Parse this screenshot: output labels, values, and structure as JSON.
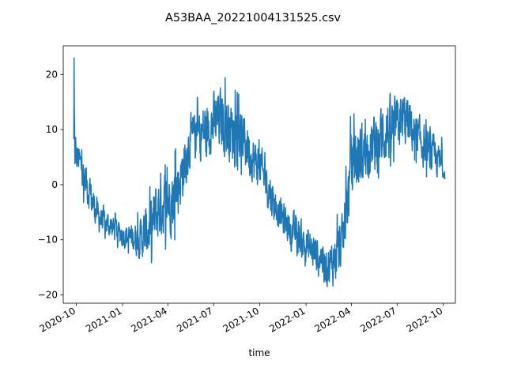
{
  "chart_data": {
    "type": "line",
    "title": "A53BAA_20221004131525.csv",
    "xlabel": "time",
    "ylabel": "",
    "xlim": [
      "2020-09-05",
      "2022-10-25"
    ],
    "ylim": [
      -21.5,
      25.2
    ],
    "grid": false,
    "legend": "none",
    "x_ticks": [
      "2020-10",
      "2021-01",
      "2021-04",
      "2021-07",
      "2021-10",
      "2022-01",
      "2022-04",
      "2022-07",
      "2022-10"
    ],
    "y_ticks": [
      -20,
      -10,
      0,
      10,
      20
    ],
    "series": [
      {
        "name": "",
        "color": "#1f77b4",
        "x": [
          "2020-09-26",
          "2020-10-01",
          "2020-10-08",
          "2020-10-15",
          "2020-10-22",
          "2020-11-01",
          "2020-11-15",
          "2020-12-01",
          "2020-12-15",
          "2021-01-01",
          "2021-01-15",
          "2021-02-01",
          "2021-02-15",
          "2021-03-01",
          "2021-03-15",
          "2021-04-01",
          "2021-04-15",
          "2021-05-01",
          "2021-05-15",
          "2021-06-01",
          "2021-06-15",
          "2021-07-01",
          "2021-07-15",
          "2021-08-01",
          "2021-08-15",
          "2021-09-01",
          "2021-09-15",
          "2021-10-01",
          "2021-10-15",
          "2021-11-01",
          "2021-11-15",
          "2021-12-01",
          "2021-12-15",
          "2022-01-01",
          "2022-01-15",
          "2022-02-01",
          "2022-02-15",
          "2022-03-01",
          "2022-03-15",
          "2022-04-01",
          "2022-04-15",
          "2022-05-01",
          "2022-05-15",
          "2022-06-01",
          "2022-06-15",
          "2022-07-01",
          "2022-07-15",
          "2022-08-01",
          "2022-08-15",
          "2022-09-01",
          "2022-09-15",
          "2022-10-01",
          "2022-10-04"
        ],
        "y": [
          6.0,
          5.0,
          4.0,
          2.0,
          0.0,
          -3.0,
          -6.0,
          -7.0,
          -8.0,
          -9.0,
          -9.5,
          -10.0,
          -9.0,
          -7.0,
          -4.0,
          -3.0,
          -2.0,
          3.0,
          8.0,
          9.0,
          10.0,
          11.0,
          12.0,
          10.0,
          9.0,
          8.0,
          5.0,
          3.0,
          0.0,
          -4.0,
          -6.0,
          -8.0,
          -9.0,
          -11.0,
          -12.0,
          -13.0,
          -15.0,
          -13.0,
          -10.0,
          3.0,
          5.0,
          6.0,
          7.0,
          9.0,
          10.0,
          11.0,
          12.0,
          10.0,
          8.0,
          6.0,
          5.0,
          3.0,
          2.0
        ],
        "y_min": [
          0.5,
          1.0,
          0.0,
          -3.0,
          -6.0,
          -8.0,
          -9.0,
          -10.0,
          -11.0,
          -12.0,
          -12.5,
          -13.0,
          -15.5,
          -14.0,
          -11.0,
          -12.0,
          -10.0,
          -2.0,
          3.0,
          4.0,
          5.0,
          6.0,
          6.0,
          4.0,
          3.0,
          1.0,
          -1.0,
          -3.0,
          -6.0,
          -8.0,
          -10.0,
          -12.0,
          -13.0,
          -15.0,
          -16.0,
          -17.0,
          -19.0,
          -18.0,
          -15.0,
          -3.0,
          -5.0,
          -1.0,
          0.0,
          2.0,
          3.0,
          5.0,
          6.0,
          5.0,
          3.0,
          1.0,
          0.0,
          1.5,
          1.0
        ],
        "y_max": [
          23.0,
          9.5,
          8.0,
          5.0,
          3.0,
          0.0,
          -2.0,
          -4.0,
          -5.0,
          -6.0,
          -6.0,
          -5.0,
          -3.0,
          1.0,
          5.0,
          3.0,
          6.0,
          12.0,
          15.0,
          16.0,
          19.0,
          21.0,
          21.0,
          18.0,
          17.0,
          15.0,
          10.0,
          8.0,
          5.0,
          0.0,
          -2.0,
          -4.0,
          -4.0,
          -6.0,
          -7.0,
          -8.0,
          -9.0,
          -6.0,
          -3.0,
          14.0,
          11.0,
          12.0,
          14.0,
          18.0,
          18.0,
          17.0,
          20.0,
          16.0,
          14.0,
          11.0,
          9.0,
          8.5,
          8.0
        ]
      }
    ]
  }
}
